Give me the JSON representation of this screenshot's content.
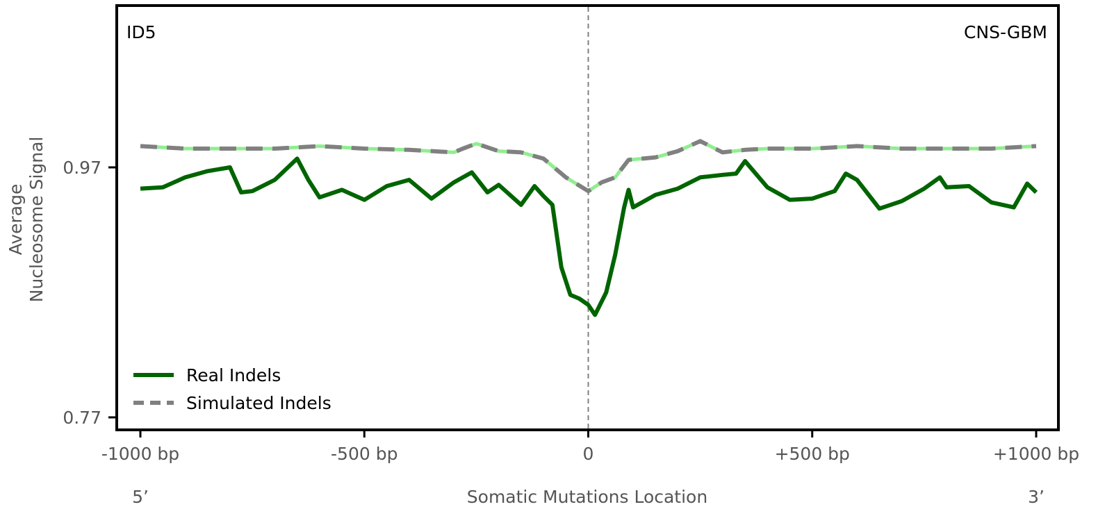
{
  "chart_data": {
    "type": "line",
    "annotation_left": "ID5",
    "annotation_right": "CNS-GBM",
    "ylabel_line1": "Average",
    "ylabel_line2": "Nucleosome Signal",
    "xlabel": "Somatic Mutations Location",
    "x_end_left": "5’",
    "x_end_right": "3’",
    "xlim": [
      -1000,
      1000
    ],
    "ylim": [
      0.76,
      1.1
    ],
    "xticks": [
      {
        "value": -1000,
        "label": "-1000 bp"
      },
      {
        "value": -500,
        "label": "-500 bp"
      },
      {
        "value": 0,
        "label": "0"
      },
      {
        "value": 500,
        "label": "+500 bp"
      },
      {
        "value": 1000,
        "label": "+1000 bp"
      }
    ],
    "yticks": [
      {
        "value": 0.77,
        "label": "0.77"
      },
      {
        "value": 0.97,
        "label": "0.97"
      }
    ],
    "center_line": {
      "x": 0,
      "style": "dashed",
      "color": "#808080"
    },
    "series": [
      {
        "name": "Real Indels",
        "color": "#006400",
        "style": "solid",
        "x": [
          -1000,
          -950,
          -900,
          -850,
          -800,
          -775,
          -750,
          -700,
          -650,
          -625,
          -600,
          -550,
          -500,
          -450,
          -400,
          -350,
          -300,
          -260,
          -225,
          -200,
          -150,
          -120,
          -100,
          -80,
          -60,
          -40,
          -20,
          0,
          15,
          40,
          60,
          80,
          90,
          100,
          150,
          200,
          250,
          300,
          330,
          350,
          400,
          450,
          500,
          550,
          575,
          600,
          650,
          700,
          750,
          785,
          800,
          850,
          900,
          950,
          980,
          1000
        ],
        "y": [
          0.953,
          0.954,
          0.962,
          0.967,
          0.97,
          0.95,
          0.951,
          0.96,
          0.977,
          0.96,
          0.946,
          0.952,
          0.944,
          0.955,
          0.96,
          0.945,
          0.958,
          0.966,
          0.95,
          0.956,
          0.94,
          0.955,
          0.947,
          0.94,
          0.89,
          0.868,
          0.865,
          0.86,
          0.852,
          0.87,
          0.9,
          0.938,
          0.952,
          0.938,
          0.948,
          0.953,
          0.962,
          0.964,
          0.965,
          0.975,
          0.954,
          0.944,
          0.945,
          0.951,
          0.965,
          0.96,
          0.937,
          0.943,
          0.953,
          0.962,
          0.954,
          0.955,
          0.942,
          0.938,
          0.957,
          0.95
        ]
      },
      {
        "name": "Simulated Indels",
        "color": "#808080",
        "dash_color": "#90ee90",
        "style": "dashed",
        "x": [
          -1000,
          -900,
          -800,
          -700,
          -600,
          -500,
          -400,
          -300,
          -280,
          -250,
          -200,
          -150,
          -100,
          -50,
          0,
          30,
          60,
          90,
          150,
          200,
          250,
          300,
          350,
          400,
          500,
          600,
          700,
          800,
          900,
          1000
        ],
        "y": [
          0.987,
          0.985,
          0.985,
          0.985,
          0.987,
          0.985,
          0.984,
          0.982,
          0.985,
          0.989,
          0.983,
          0.982,
          0.977,
          0.962,
          0.951,
          0.958,
          0.962,
          0.976,
          0.978,
          0.983,
          0.991,
          0.982,
          0.984,
          0.985,
          0.985,
          0.987,
          0.985,
          0.985,
          0.985,
          0.987
        ]
      }
    ],
    "legend": {
      "placement": "lower-left"
    }
  }
}
